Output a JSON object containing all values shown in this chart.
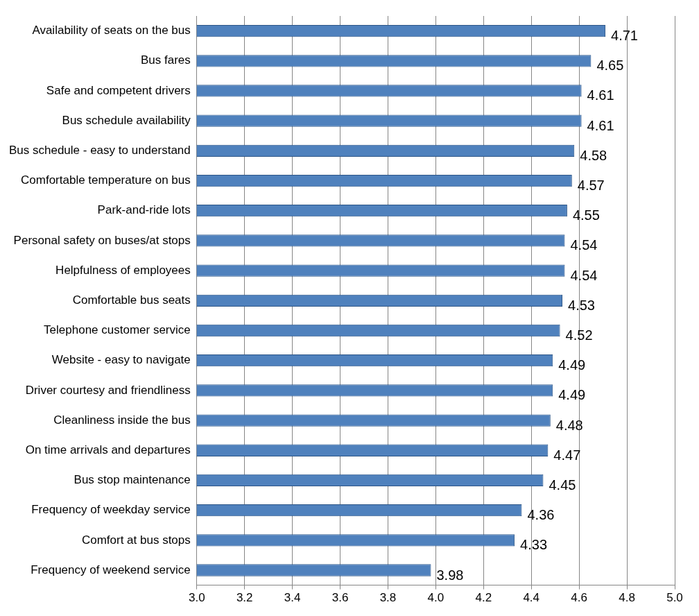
{
  "chart_data": {
    "type": "bar",
    "orientation": "horizontal",
    "categories": [
      "Availability of seats on the bus",
      "Bus fares",
      "Safe and competent drivers",
      "Bus schedule availability",
      "Bus schedule - easy to understand",
      "Comfortable temperature on bus",
      "Park-and-ride lots",
      "Personal safety on buses/at stops",
      "Helpfulness of employees",
      "Comfortable bus seats",
      "Telephone customer service",
      "Website - easy to navigate",
      "Driver courtesy and friendliness",
      "Cleanliness inside the bus",
      "On time arrivals and departures",
      "Bus stop maintenance",
      "Frequency of weekday service",
      "Comfort at bus stops",
      "Frequency of weekend service"
    ],
    "values": [
      4.71,
      4.65,
      4.61,
      4.61,
      4.58,
      4.57,
      4.55,
      4.54,
      4.54,
      4.53,
      4.52,
      4.49,
      4.49,
      4.48,
      4.47,
      4.45,
      4.36,
      4.33,
      3.98
    ],
    "color": "#4f81bd",
    "data_labels": true,
    "xlim": [
      3.0,
      5.0
    ],
    "xticks": [
      {
        "value": 3,
        "label": "3.0"
      },
      {
        "value": 3.2,
        "label": "3.2"
      },
      {
        "value": 3.4,
        "label": "3.4"
      },
      {
        "value": 3.6,
        "label": "3.6"
      },
      {
        "value": 3.8,
        "label": "3.8"
      },
      {
        "value": 4,
        "label": "4.0"
      },
      {
        "value": 4.2,
        "label": "4.2"
      },
      {
        "value": 4.4,
        "label": "4.4"
      },
      {
        "value": 4.6,
        "label": "4.6"
      },
      {
        "value": 4.8,
        "label": "4.8"
      },
      {
        "value": 5,
        "label": "5.0"
      }
    ],
    "grid": "x",
    "legend": false
  }
}
